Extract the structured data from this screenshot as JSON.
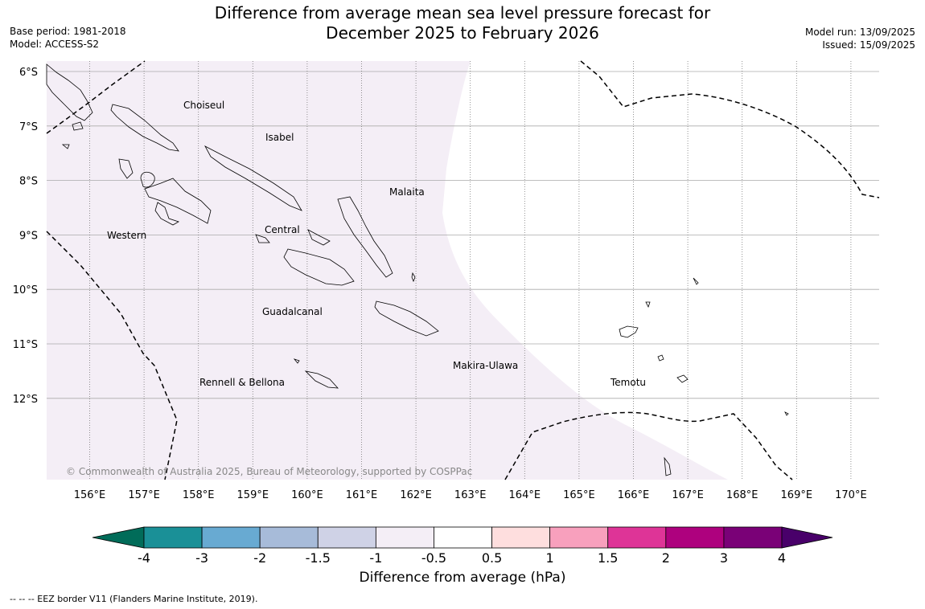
{
  "title_line1": "Difference from average mean sea level pressure forecast for",
  "title_line2": "December 2025 to February 2026",
  "meta_left": {
    "base_period": "Base period: 1981-2018",
    "model": "Model: ACCESS-S2"
  },
  "meta_right": {
    "model_run": "Model run: 13/09/2025",
    "issued": "Issued: 15/09/2025"
  },
  "lat_labels": [
    "6°S",
    "7°S",
    "8°S",
    "9°S",
    "10°S",
    "11°S",
    "12°S"
  ],
  "lon_labels": [
    "156°E",
    "157°E",
    "158°E",
    "159°E",
    "160°E",
    "161°E",
    "162°E",
    "163°E",
    "164°E",
    "165°E",
    "166°E",
    "167°E",
    "168°E",
    "169°E",
    "170°E"
  ],
  "regions": [
    "Choiseul",
    "Isabel",
    "Malaita",
    "Western",
    "Central",
    "Guadalcanal",
    "Makira-Ulawa",
    "Rennell & Bellona",
    "Temotu"
  ],
  "copyright": "© Commonwealth of Australia 2025, Bureau of Meteorology, supported by COSPPac",
  "colorbar": {
    "title": "Difference from average (hPa)",
    "ticks": [
      "-4",
      "-3",
      "-2",
      "-1.5",
      "-1",
      "-0.5",
      "0.5",
      "1",
      "1.5",
      "2",
      "3",
      "4"
    ],
    "colors": [
      "#1a9097",
      "#68aad2",
      "#a7bbd9",
      "#cfd2e6",
      "#f4eef6",
      "#ffffff",
      "#fedede",
      "#f8a0bd",
      "#de3497",
      "#ae017e",
      "#7a0177"
    ],
    "low_extend_color": "#016c59",
    "high_extend_color": "#49006a"
  },
  "shading_color": "#f4eef6",
  "footnote": "--  --  -- EEZ border V11 (Flanders Marine Institute, 2019)."
}
